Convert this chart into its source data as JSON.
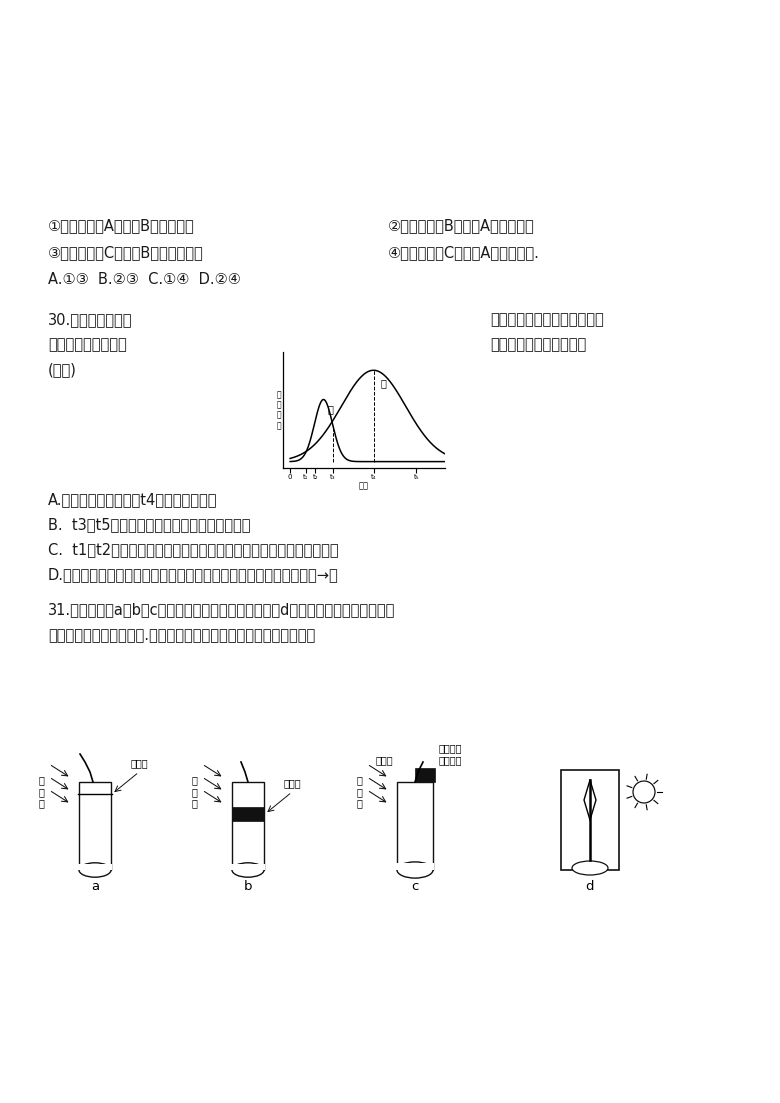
{
  "bg_color": "#ffffff",
  "line1_left": "①将药物放在A，刺激B，肌肉收缩",
  "line1_right": "②将药物放在B，刺激A，肌肉收缩",
  "line2_left": "③将药物放在C，刺激B，肌肉不收缩",
  "line2_right": "④将药物放在C，刺激A，肌肉收缩.",
  "line3": "A.①③  B.②③  C.①④  D.②④",
  "q30_left1": "30.如图表示某生物",
  "q30_right1": "群落中甲、乙两个种群的增长",
  "q30_left2": "速率随时间变化的曲",
  "q30_right2": "线，下列叙述中正确的是",
  "q30_paren": "(　　)",
  "optA": "A.如乙为农作物害虫，t4时间点防治最好",
  "optB": "B.  t3－t5时间内甲、乙两种群的年龄组成不同",
  "optC": "C.  t1－t2时间内甲种群出生率下降，死亡率上升，死亡率大于出生率",
  "optD": "D.甲、乙两种群肯定为竞争关系，甲的竞争力小于乙，竞争强度由强→弱",
  "q31_line1": "31.如图所示，a、b、c为对胚芽鞘做不同处理的实验，d为一植株被纸盒罩住，纸盒",
  "q31_line2": "的一侧开口，有单侧光照.下列对实验结果的描述，正确的是（　　）",
  "label_a": "玻璃片",
  "label_b": "琼脂片",
  "label_c_top": "琼脂片",
  "label_c_right": "含生长素\n的琼脂块",
  "label_light": "单\n侧\n光",
  "graph_t1": 0.65,
  "graph_t2": 1.05,
  "graph_t3": 1.8,
  "graph_t4": 3.5,
  "graph_t5": 5.3,
  "jia_mu": 1.4,
  "jia_amp": 0.68,
  "jia_sig": 0.38,
  "yi_mu": 3.5,
  "yi_amp": 1.0,
  "yi_sig": 1.35
}
